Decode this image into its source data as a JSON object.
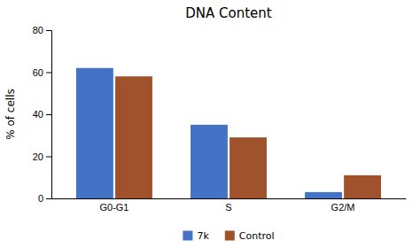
{
  "chart_data": {
    "type": "bar",
    "title": "DNA Content",
    "ylabel": "% of cells",
    "categories": [
      "G0-G1",
      "S",
      "G2/M"
    ],
    "series": [
      {
        "name": "7k",
        "color": "#4472C4",
        "values": [
          62,
          35,
          3
        ]
      },
      {
        "name": "Control",
        "color": "#A0522D",
        "values": [
          58,
          29,
          11
        ]
      }
    ],
    "ylim": [
      0,
      80
    ],
    "yticks": [
      0,
      20,
      40,
      60,
      80
    ],
    "grid": false,
    "legend": "bottom"
  }
}
